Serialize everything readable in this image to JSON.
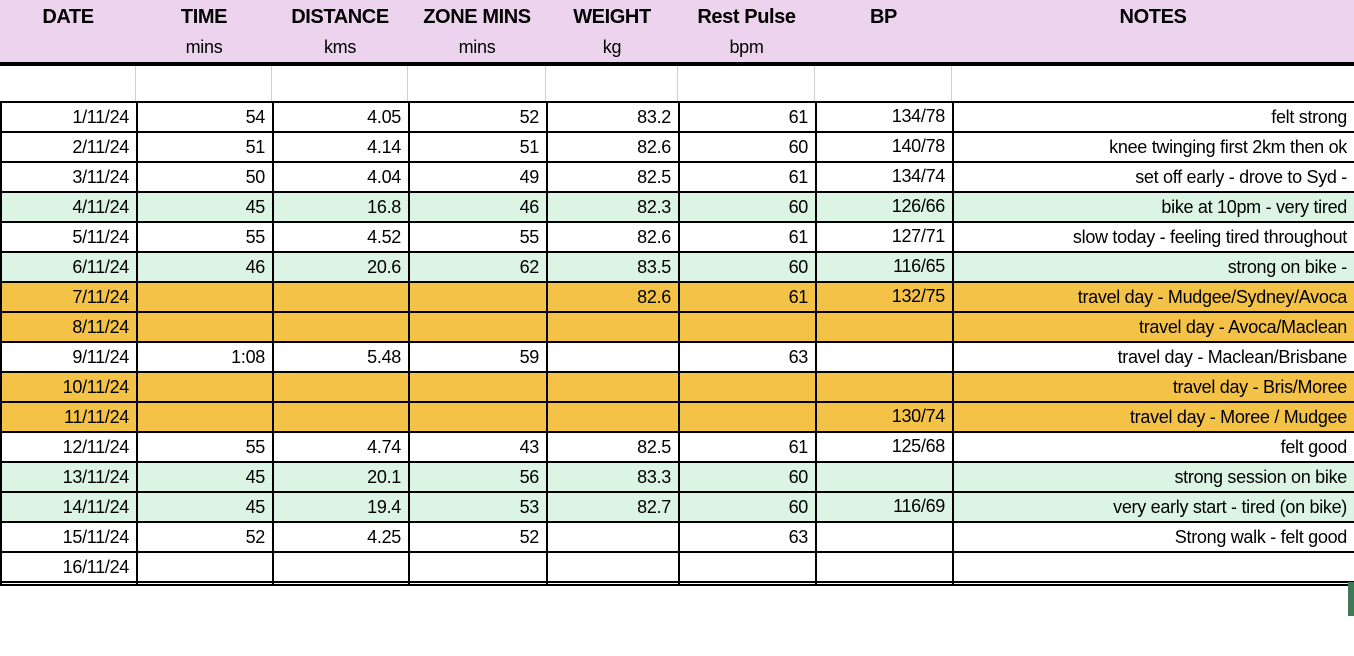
{
  "header": {
    "columns": [
      {
        "label": "DATE",
        "unit": ""
      },
      {
        "label": "TIME",
        "unit": "mins"
      },
      {
        "label": "DISTANCE",
        "unit": "kms"
      },
      {
        "label": "ZONE MINS",
        "unit": "mins"
      },
      {
        "label": "WEIGHT",
        "unit": "kg"
      },
      {
        "label": "Rest Pulse",
        "unit": "bpm"
      },
      {
        "label": "BP",
        "unit": ""
      },
      {
        "label": "NOTES",
        "unit": ""
      }
    ]
  },
  "colors": {
    "header_bg": "#ECD4EE",
    "green_row": "#DCF4E4",
    "orange_row": "#F3C247",
    "white_row": "#FFFFFF",
    "gridline_gray": "#CFCFCF",
    "selection_green": "#3E7A57",
    "border_black": "#000000"
  },
  "rows": [
    {
      "date": "1/11/24",
      "time": "54",
      "distance": "4.05",
      "zone": "52",
      "weight": "83.2",
      "pulse": "61",
      "bp": "134/78",
      "notes": "felt strong",
      "color": "white"
    },
    {
      "date": "2/11/24",
      "time": "51",
      "distance": "4.14",
      "zone": "51",
      "weight": "82.6",
      "pulse": "60",
      "bp": "140/78",
      "notes": "knee twinging first 2km then ok",
      "color": "white"
    },
    {
      "date": "3/11/24",
      "time": "50",
      "distance": "4.04",
      "zone": "49",
      "weight": "82.5",
      "pulse": "61",
      "bp": "134/74",
      "notes": "set off early - drove to Syd -",
      "color": "white"
    },
    {
      "date": "4/11/24",
      "time": "45",
      "distance": "16.8",
      "zone": "46",
      "weight": "82.3",
      "pulse": "60",
      "bp": "126/66",
      "notes": "bike at 10pm - very tired",
      "color": "green"
    },
    {
      "date": "5/11/24",
      "time": "55",
      "distance": "4.52",
      "zone": "55",
      "weight": "82.6",
      "pulse": "61",
      "bp": "127/71",
      "notes": "slow today - feeling tired throughout",
      "color": "white"
    },
    {
      "date": "6/11/24",
      "time": "46",
      "distance": "20.6",
      "zone": "62",
      "weight": "83.5",
      "pulse": "60",
      "bp": "116/65",
      "notes": "strong on bike -",
      "color": "green"
    },
    {
      "date": "7/11/24",
      "time": "",
      "distance": "",
      "zone": "",
      "weight": "82.6",
      "pulse": "61",
      "bp": "132/75",
      "notes": "travel day - Mudgee/Sydney/Avoca",
      "color": "orange"
    },
    {
      "date": "8/11/24",
      "time": "",
      "distance": "",
      "zone": "",
      "weight": "",
      "pulse": "",
      "bp": "",
      "notes": "travel day - Avoca/Maclean",
      "color": "orange"
    },
    {
      "date": "9/11/24",
      "time": "1:08",
      "distance": "5.48",
      "zone": "59",
      "weight": "",
      "pulse": "63",
      "bp": "",
      "notes": "travel day - Maclean/Brisbane",
      "color": "white"
    },
    {
      "date": "10/11/24",
      "time": "",
      "distance": "",
      "zone": "",
      "weight": "",
      "pulse": "",
      "bp": "",
      "notes": "travel day - Bris/Moree",
      "color": "orange"
    },
    {
      "date": "11/11/24",
      "time": "",
      "distance": "",
      "zone": "",
      "weight": "",
      "pulse": "",
      "bp": "130/74",
      "notes": "travel day - Moree / Mudgee",
      "color": "orange"
    },
    {
      "date": "12/11/24",
      "time": "55",
      "distance": "4.74",
      "zone": "43",
      "weight": "82.5",
      "pulse": "61",
      "bp": "125/68",
      "notes": "felt good",
      "color": "white"
    },
    {
      "date": "13/11/24",
      "time": "45",
      "distance": "20.1",
      "zone": "56",
      "weight": "83.3",
      "pulse": "60",
      "bp": "",
      "notes": "strong session on bike",
      "color": "green"
    },
    {
      "date": "14/11/24",
      "time": "45",
      "distance": "19.4",
      "zone": "53",
      "weight": "82.7",
      "pulse": "60",
      "bp": "116/69",
      "notes": "very early start - tired (on bike)",
      "color": "green"
    },
    {
      "date": "15/11/24",
      "time": "52",
      "distance": "4.25",
      "zone": "52",
      "weight": "",
      "pulse": "63",
      "bp": "",
      "notes": "Strong walk - felt good",
      "color": "white"
    },
    {
      "date": "16/11/24",
      "time": "",
      "distance": "",
      "zone": "",
      "weight": "",
      "pulse": "",
      "bp": "",
      "notes": "",
      "color": "white"
    }
  ]
}
